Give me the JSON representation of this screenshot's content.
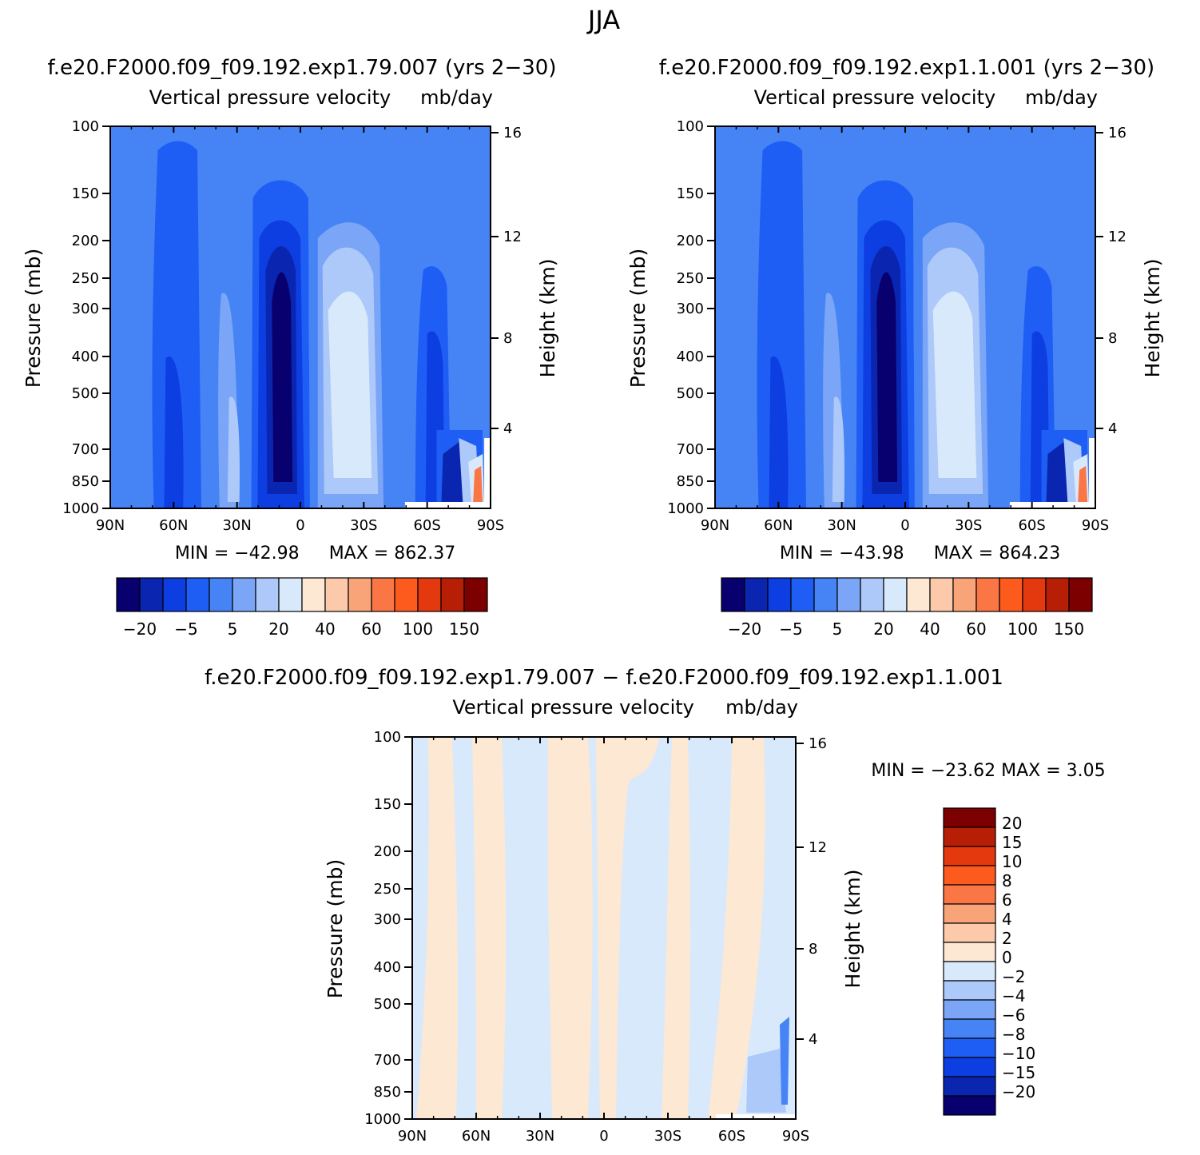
{
  "page_title": "JJA",
  "palette": {
    "cool": [
      "#08006e",
      "#0a26b0",
      "#0d3ee2",
      "#1f5ef5",
      "#4684f6",
      "#7ba5f7",
      "#adc9fa",
      "#d8e9fb"
    ],
    "warm": [
      "#fde8d4",
      "#fcc9aa",
      "#f8a478",
      "#fa7645",
      "#fd5a1e",
      "#e4380f",
      "#b71e06",
      "#7d0000"
    ]
  },
  "chart_data": [
    {
      "type": "contour",
      "case_title": "f.e20.F2000.f09_f09.192.exp1.79.007 (yrs 2-30)",
      "title": "Vertical pressure velocity",
      "units": "mb/day",
      "ylabel": "Pressure (mb)",
      "y2label": "Height (km)",
      "xticks": [
        "90N",
        "60N",
        "30N",
        "0",
        "30S",
        "60S",
        "90S"
      ],
      "yticks": [
        100,
        150,
        200,
        250,
        300,
        400,
        500,
        700,
        850,
        1000
      ],
      "y2ticks": [
        16,
        12,
        8,
        4
      ],
      "min_label": "MIN =  -42.98",
      "max_label": "MAX =  862.37",
      "colorbar_labels": [
        "-20",
        "-5",
        "5",
        "20",
        "40",
        "60",
        "100",
        "150"
      ]
    },
    {
      "type": "contour",
      "case_title": "f.e20.F2000.f09_f09.192.exp1.1.001 (yrs 2-30)",
      "title": "Vertical pressure velocity",
      "units": "mb/day",
      "ylabel": "Pressure (mb)",
      "y2label": "Height (km)",
      "xticks": [
        "90N",
        "60N",
        "30N",
        "0",
        "30S",
        "60S",
        "90S"
      ],
      "yticks": [
        100,
        150,
        200,
        250,
        300,
        400,
        500,
        700,
        850,
        1000
      ],
      "y2ticks": [
        16,
        12,
        8,
        4
      ],
      "min_label": "MIN =  -43.98",
      "max_label": "MAX =  864.23",
      "colorbar_labels": [
        "-20",
        "-5",
        "5",
        "20",
        "40",
        "60",
        "100",
        "150"
      ]
    },
    {
      "type": "contour",
      "case_title": "f.e20.F2000.f09_f09.192.exp1.79.007 - f.e20.F2000.f09_f09.192.exp1.1.001",
      "title": "Vertical pressure velocity",
      "units": "mb/day",
      "ylabel": "Pressure (mb)",
      "y2label": "Height (km)",
      "xticks": [
        "90N",
        "60N",
        "30N",
        "0",
        "30S",
        "60S",
        "90S"
      ],
      "yticks": [
        100,
        150,
        200,
        250,
        300,
        400,
        500,
        700,
        850,
        1000
      ],
      "y2ticks": [
        16,
        12,
        8,
        4
      ],
      "minmax_label": "MIN = -23.62   MAX =    3.05",
      "colorbar_labels": [
        "20",
        "15",
        "10",
        "8",
        "6",
        "4",
        "2",
        "0",
        "-2",
        "-4",
        "-6",
        "-8",
        "-10",
        "-15",
        "-20"
      ]
    }
  ]
}
